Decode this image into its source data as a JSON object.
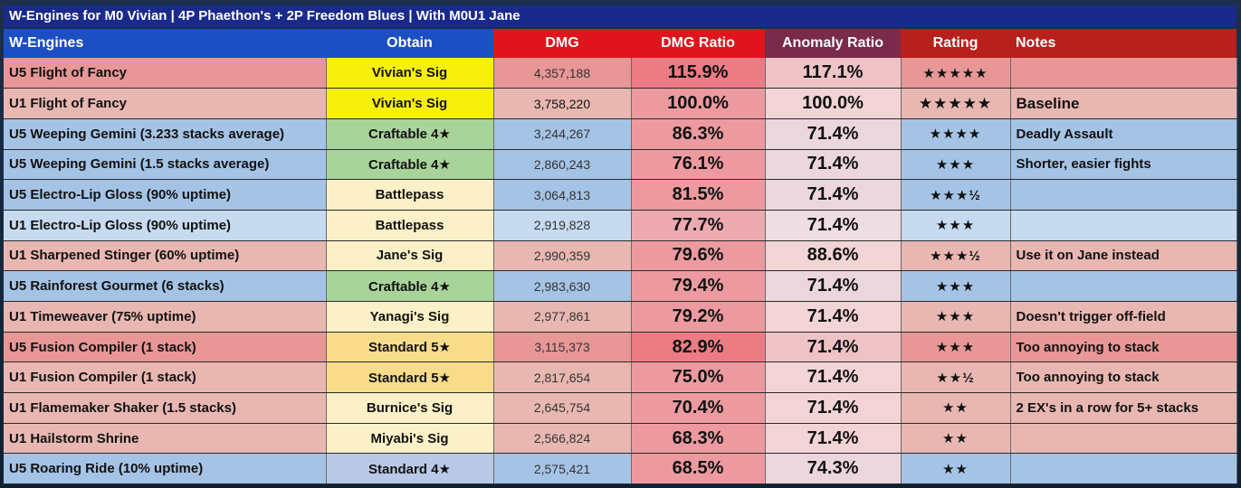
{
  "title": "W-Engines for M0 Vivian | 4P Phaethon's + 2P Freedom Blues | With M0U1 Jane",
  "headers": {
    "name": "W-Engines",
    "obtain": "Obtain",
    "dmg": "DMG",
    "ratio": "DMG Ratio",
    "anomaly": "Anomaly Ratio",
    "rating": "Rating",
    "notes": "Notes"
  },
  "rows": [
    {
      "name": "U5 Flight of Fancy",
      "obtain": "Vivian's Sig",
      "dmg": "4,357,188",
      "ratio": "115.9%",
      "anomaly": "117.1%",
      "rating": "★★★★★",
      "notes": "",
      "tone": "t-red",
      "obtain_tone": "o-yellow"
    },
    {
      "name": "U1 Flight of Fancy",
      "obtain": "Vivian's Sig",
      "dmg": "3,758,220",
      "ratio": "100.0%",
      "anomaly": "100.0%",
      "rating": "★★★★★",
      "notes": "Baseline",
      "tone": "t-pink",
      "obtain_tone": "o-yellow"
    },
    {
      "name": "U5 Weeping Gemini (3.233 stacks average)",
      "obtain": "Craftable 4★",
      "dmg": "3,244,267",
      "ratio": "86.3%",
      "anomaly": "71.4%",
      "rating": "★★★★",
      "notes": "Deadly Assault",
      "tone": "t-blue",
      "obtain_tone": "o-green"
    },
    {
      "name": "U5 Weeping Gemini (1.5 stacks average)",
      "obtain": "Craftable 4★",
      "dmg": "2,860,243",
      "ratio": "76.1%",
      "anomaly": "71.4%",
      "rating": "★★★",
      "notes": "Shorter, easier fights",
      "tone": "t-blue",
      "obtain_tone": "o-green"
    },
    {
      "name": "U5 Electro-Lip Gloss (90% uptime)",
      "obtain": "Battlepass",
      "dmg": "3,064,813",
      "ratio": "81.5%",
      "anomaly": "71.4%",
      "rating": "★★★½",
      "notes": "",
      "tone": "t-blue",
      "obtain_tone": "o-cream"
    },
    {
      "name": "U1 Electro-Lip Gloss (90% uptime)",
      "obtain": "Battlepass",
      "dmg": "2,919,828",
      "ratio": "77.7%",
      "anomaly": "71.4%",
      "rating": "★★★",
      "notes": "",
      "tone": "t-lblue",
      "obtain_tone": "o-cream"
    },
    {
      "name": "U1 Sharpened Stinger (60% uptime)",
      "obtain": "Jane's Sig",
      "dmg": "2,990,359",
      "ratio": "79.6%",
      "anomaly": "88.6%",
      "rating": "★★★½",
      "notes": "Use it on Jane instead",
      "tone": "t-pink",
      "obtain_tone": "o-cream"
    },
    {
      "name": "U5 Rainforest Gourmet (6 stacks)",
      "obtain": "Craftable 4★",
      "dmg": "2,983,630",
      "ratio": "79.4%",
      "anomaly": "71.4%",
      "rating": "★★★",
      "notes": "",
      "tone": "t-blue",
      "obtain_tone": "o-green"
    },
    {
      "name": "U1 Timeweaver (75% uptime)",
      "obtain": "Yanagi's Sig",
      "dmg": "2,977,861",
      "ratio": "79.2%",
      "anomaly": "71.4%",
      "rating": "★★★",
      "notes": "Doesn't trigger off-field",
      "tone": "t-pink",
      "obtain_tone": "o-cream"
    },
    {
      "name": "U5 Fusion Compiler (1 stack)",
      "obtain": "Standard 5★",
      "dmg": "3,115,373",
      "ratio": "82.9%",
      "anomaly": "71.4%",
      "rating": "★★★",
      "notes": "Too annoying to stack",
      "tone": "t-red",
      "obtain_tone": "o-gold"
    },
    {
      "name": "U1 Fusion Compiler (1 stack)",
      "obtain": "Standard 5★",
      "dmg": "2,817,654",
      "ratio": "75.0%",
      "anomaly": "71.4%",
      "rating": "★★½",
      "notes": "Too annoying to stack",
      "tone": "t-pink",
      "obtain_tone": "o-gold"
    },
    {
      "name": "U1 Flamemaker Shaker (1.5 stacks)",
      "obtain": "Burnice's Sig",
      "dmg": "2,645,754",
      "ratio": "70.4%",
      "anomaly": "71.4%",
      "rating": "★★",
      "notes": "2 EX's in a row for 5+ stacks",
      "tone": "t-pink",
      "obtain_tone": "o-cream"
    },
    {
      "name": "U1 Hailstorm Shrine",
      "obtain": "Miyabi's Sig",
      "dmg": "2,566,824",
      "ratio": "68.3%",
      "anomaly": "71.4%",
      "rating": "★★",
      "notes": "",
      "tone": "t-pink",
      "obtain_tone": "o-cream"
    },
    {
      "name": "U5 Roaring Ride (10% uptime)",
      "obtain": "Standard 4★",
      "dmg": "2,575,421",
      "ratio": "68.5%",
      "anomaly": "74.3%",
      "rating": "★★",
      "notes": "",
      "tone": "t-blue",
      "obtain_tone": "o-lblue"
    }
  ]
}
